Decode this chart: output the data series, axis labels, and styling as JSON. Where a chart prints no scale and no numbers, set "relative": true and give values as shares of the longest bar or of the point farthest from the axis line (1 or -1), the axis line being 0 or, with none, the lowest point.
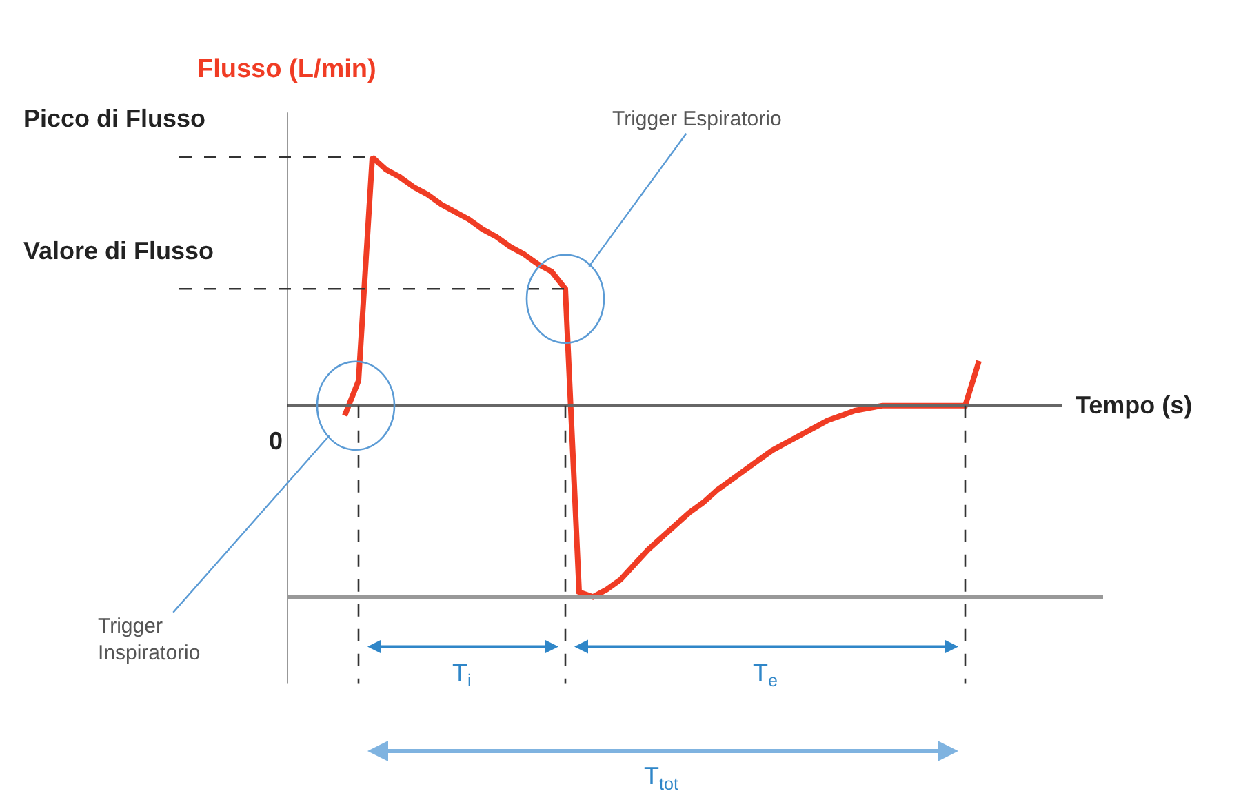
{
  "chart_data": {
    "type": "line",
    "relative": true,
    "ylabel": "Flusso (L/min)",
    "xlabel": "Tempo (s)",
    "marker": "none",
    "line_style": "solid",
    "categories": [
      null,
      null,
      null,
      null,
      null,
      null,
      null,
      null,
      null,
      null,
      null,
      null,
      null,
      null,
      null,
      null,
      null,
      null,
      null,
      null,
      null,
      null,
      null,
      null,
      null,
      null,
      null,
      null,
      null,
      null,
      null,
      null,
      null,
      null,
      null,
      null,
      null,
      null,
      null,
      null,
      null,
      null,
      null,
      null,
      null,
      null,
      null
    ],
    "series": [
      {
        "color": "#f03c24",
        "values": [
          -0.04,
          0.1,
          1,
          0.95,
          0.92,
          0.88,
          0.85,
          0.81,
          0.78,
          0.75,
          0.71,
          0.68,
          0.64,
          0.61,
          0.57,
          0.54,
          0.47,
          -0.75,
          -0.77,
          -0.74,
          -0.7,
          -0.64,
          -0.58,
          -0.53,
          -0.48,
          -0.43,
          -0.39,
          -0.34,
          -0.3,
          -0.26,
          -0.22,
          -0.18,
          -0.15,
          -0.12,
          -0.09,
          -0.06,
          -0.04,
          -0.02,
          -0.01,
          0,
          0,
          0,
          0,
          0,
          0,
          0,
          0.18
        ]
      }
    ],
    "ref_lines": [
      {
        "axis": "y",
        "value": 1,
        "label": "Picco di Flusso",
        "color": "#333333",
        "line_style": "dashed"
      },
      {
        "axis": "y",
        "value": 0.47,
        "label": "Valore di Flusso",
        "color": "#333333",
        "line_style": "dashed"
      },
      {
        "axis": "y",
        "value": -0.77,
        "color": "#999999",
        "line_style": "solid"
      }
    ],
    "annotations": [
      "0",
      "Trigger\nInspiratorio",
      "Trigger Espiratorio",
      "T$_{i}$",
      "T$_{e}$",
      "T$_{tot}$"
    ]
  }
}
